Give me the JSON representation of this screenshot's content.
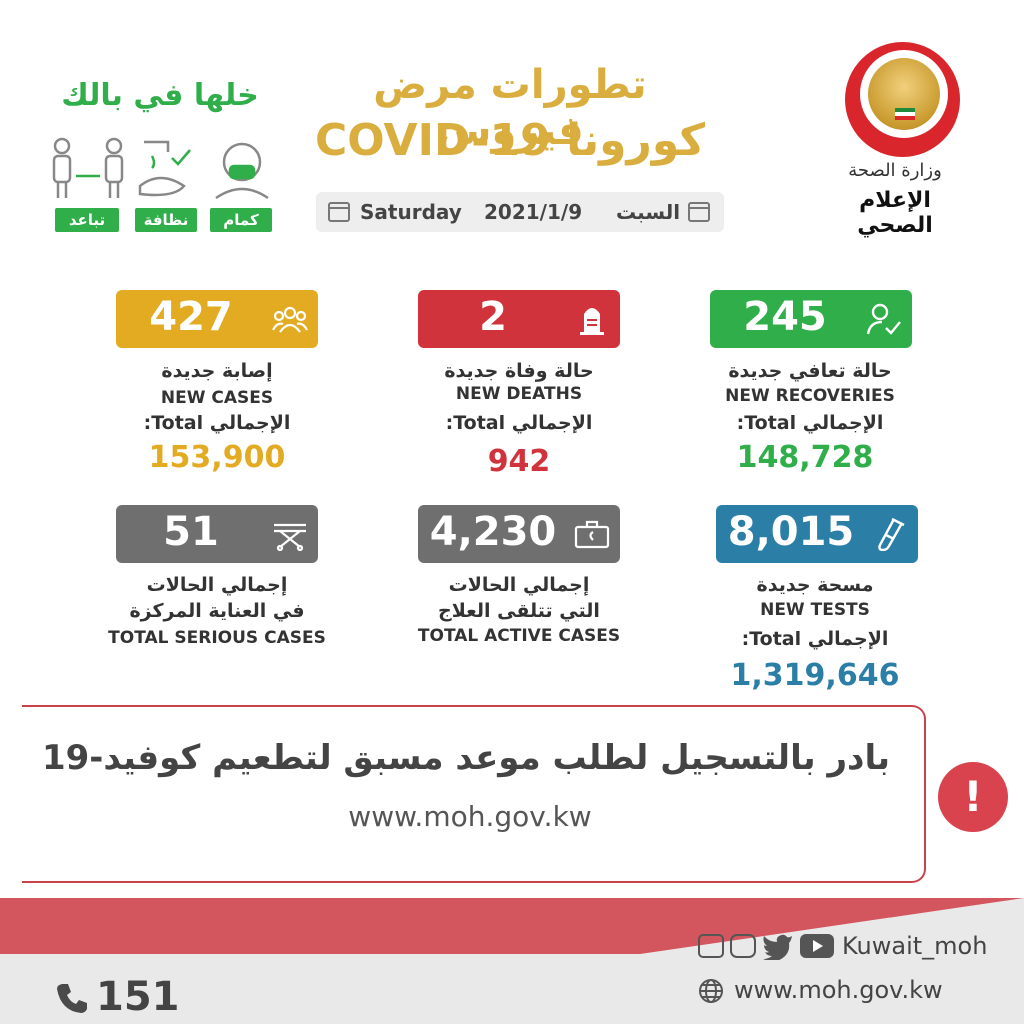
{
  "header": {
    "title_ar": "تطورات مرض فيروس",
    "title_en": "كورونا COVID-19",
    "day_en": "Saturday",
    "date": "2021/1/9",
    "day_ar": "السبت",
    "ministry": "وزارة الصحة",
    "ministry_sub": "الإعلام الصحي"
  },
  "awareness": {
    "slogan": "خلها في بالك",
    "tags": [
      "تباعد",
      "نظافة",
      "كمام"
    ]
  },
  "stats": {
    "new_cases": {
      "value": "427",
      "label_ar": "إصابة جديدة",
      "label_en": "NEW CASES",
      "total_label": "الإجمالي Total:",
      "total": "153,900",
      "color": "#e2ab22"
    },
    "new_deaths": {
      "value": "2",
      "label_ar": "حالة وفاة جديدة",
      "label_en": "NEW DEATHS",
      "total_label": "الإجمالي Total:",
      "total": "942",
      "color": "#d0333c"
    },
    "new_recoveries": {
      "value": "245",
      "label_ar": "حالة تعافي جديدة",
      "label_en": "NEW RECOVERIES",
      "total_label": "الإجمالي Total:",
      "total": "148,728",
      "color": "#2fae4a"
    },
    "serious": {
      "value": "51",
      "label_ar1": "إجمالي الحالات",
      "label_ar2": "في العناية المركزة",
      "label_en": "TOTAL SERIOUS CASES",
      "color": "#6f6f6f"
    },
    "active": {
      "value": "4,230",
      "label_ar1": "إجمالي الحالات",
      "label_ar2": "التي تتلقى العلاج",
      "label_en": "TOTAL ACTIVE CASES",
      "color": "#6f6f6f"
    },
    "tests": {
      "value": "8,015",
      "label_ar": "مسحة جديدة",
      "label_en": "NEW TESTS",
      "total_label": "الإجمالي Total:",
      "total": "1,319,646",
      "color": "#2b7fa6"
    }
  },
  "banner": {
    "text_ar": "بادر بالتسجيل لطلب موعد مسبق لتطعيم كوفيد-19",
    "url": "www.moh.gov.kw"
  },
  "footer": {
    "social_handle": "Kuwait_moh",
    "website": "www.moh.gov.kw",
    "hotline": "151"
  }
}
